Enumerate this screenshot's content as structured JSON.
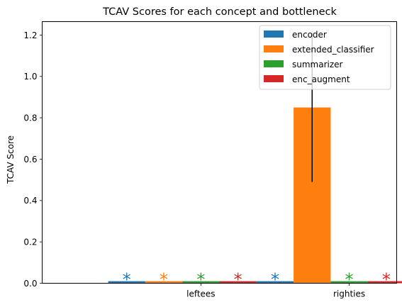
{
  "chart_data": {
    "type": "bar",
    "title": "TCAV Scores for each concept and bottleneck",
    "xlabel": "",
    "ylabel": "TCAV Score",
    "ylim": [
      0,
      1.265
    ],
    "yticks": [
      0.0,
      0.2,
      0.4,
      0.6,
      0.8,
      1.0,
      1.2
    ],
    "ytick_labels": [
      "0.0",
      "0.2",
      "0.4",
      "0.6",
      "0.8",
      "1.0",
      "1.2"
    ],
    "categories": [
      "leftees",
      "righties"
    ],
    "grid": false,
    "legend_position": "top-right",
    "series": [
      {
        "name": "encoder",
        "color": "#1f77b4",
        "values": [
          0.01,
          0.01
        ],
        "error": [
          0,
          0
        ],
        "significance_marker": [
          "*",
          "*"
        ]
      },
      {
        "name": "extended_classifier",
        "color": "#ff7f0e",
        "values": [
          0.01,
          0.85
        ],
        "error": [
          0,
          0.36
        ],
        "significance_marker": [
          "*",
          ""
        ]
      },
      {
        "name": "summarizer",
        "color": "#2ca02c",
        "values": [
          0.01,
          0.01
        ],
        "error": [
          0,
          0
        ],
        "significance_marker": [
          "*",
          "*"
        ]
      },
      {
        "name": "enc_augment",
        "color": "#d62728",
        "values": [
          0.01,
          0.01
        ],
        "error": [
          0,
          0
        ],
        "significance_marker": [
          "*",
          "*"
        ]
      }
    ]
  }
}
